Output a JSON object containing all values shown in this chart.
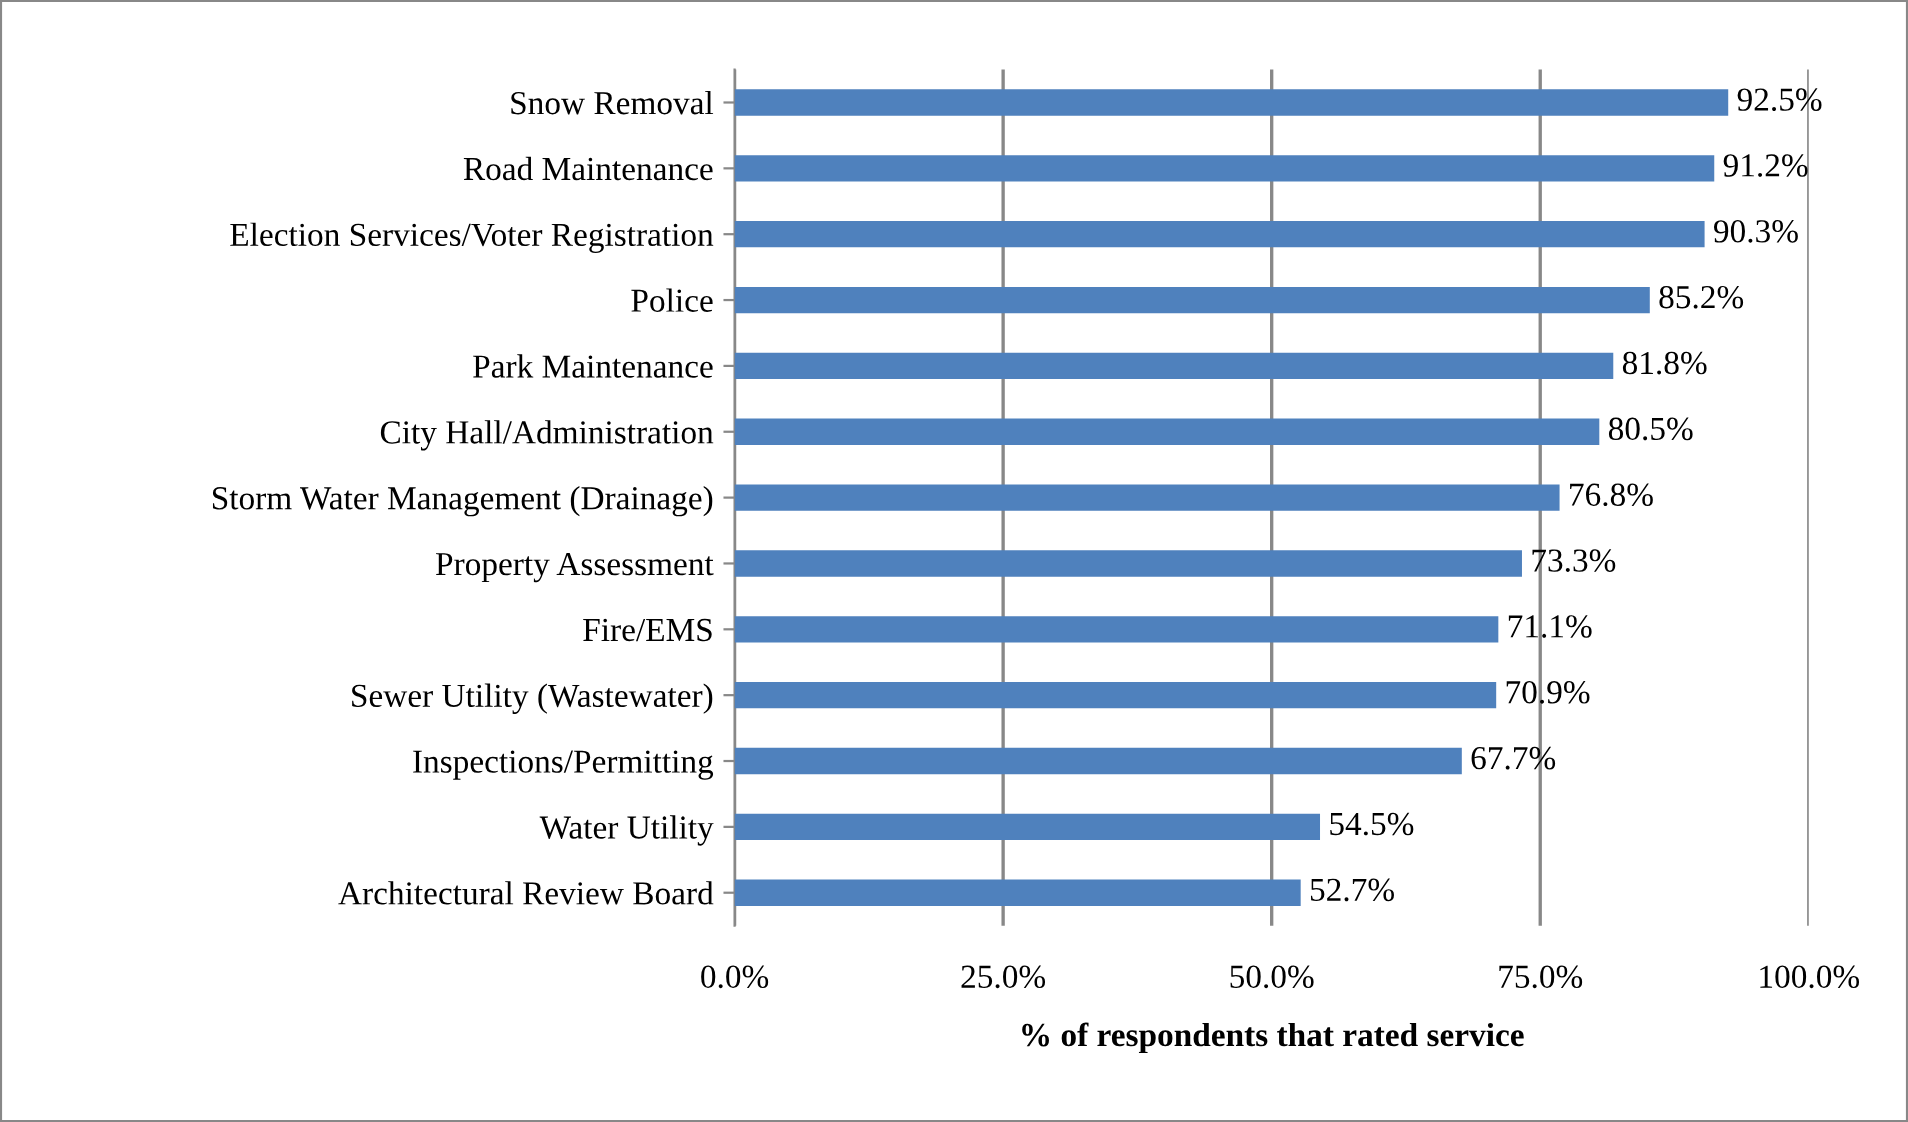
{
  "chart_data": {
    "type": "bar",
    "orientation": "horizontal",
    "xlabel": "% of respondents that rated service",
    "categories": [
      "Snow Removal",
      "Road Maintenance",
      "Election Services/Voter Registration",
      "Police",
      "Park Maintenance",
      "City Hall/Administration",
      "Storm Water Management (Drainage)",
      "Property Assessment",
      "Fire/EMS",
      "Sewer Utility (Wastewater)",
      "Inspections/Permitting",
      "Water Utility",
      "Architectural Review Board"
    ],
    "values": [
      92.5,
      91.2,
      90.3,
      85.2,
      81.8,
      80.5,
      76.8,
      73.3,
      71.1,
      70.9,
      67.7,
      54.5,
      52.7
    ],
    "value_labels": [
      "92.5%",
      "91.2%",
      "90.3%",
      "85.2%",
      "81.8%",
      "80.5%",
      "76.8%",
      "73.3%",
      "71.1%",
      "70.9%",
      "67.7%",
      "54.5%",
      "52.7%"
    ],
    "color": "#4f81bd",
    "xlim": [
      0,
      100
    ],
    "xticks": [
      {
        "value": 0,
        "label": "0.0%"
      },
      {
        "value": 25,
        "label": "25.0%"
      },
      {
        "value": 50,
        "label": "50.0%"
      },
      {
        "value": 75,
        "label": "75.0%"
      },
      {
        "value": 100,
        "label": "100.0%"
      }
    ],
    "grid": "x",
    "legend": false
  }
}
